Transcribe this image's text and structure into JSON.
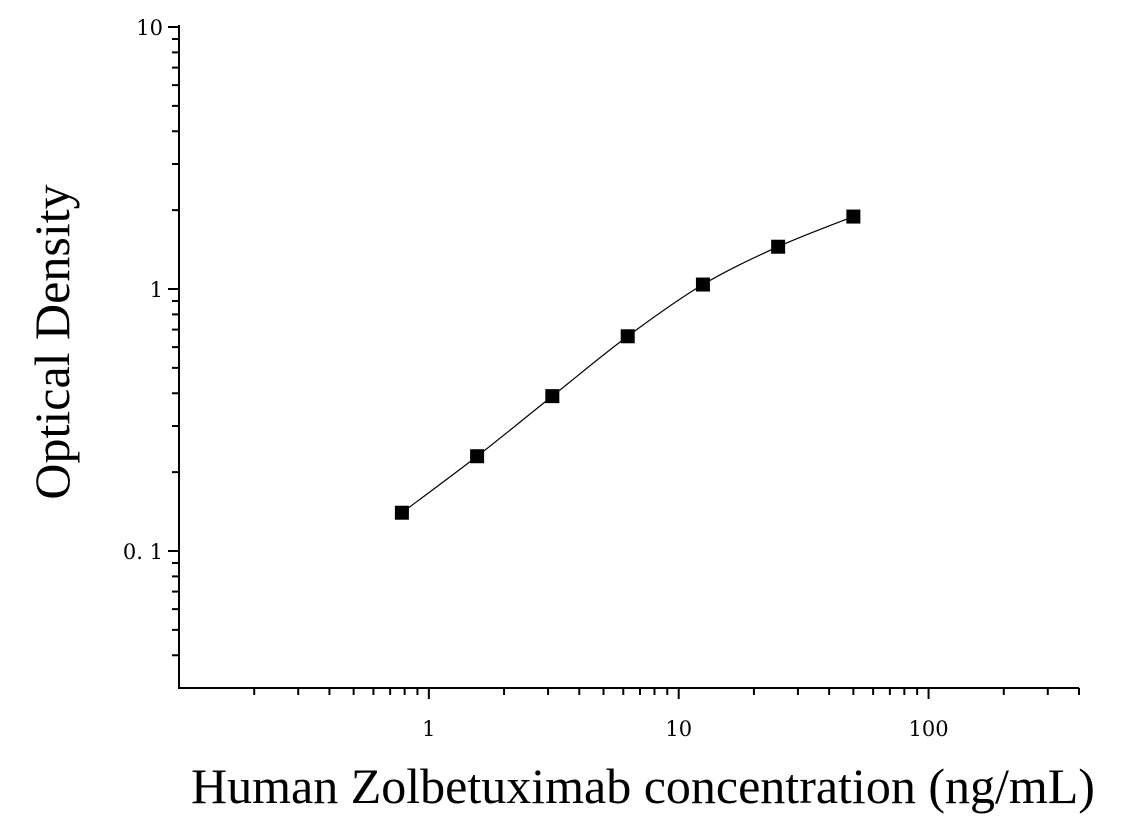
{
  "chart_data": {
    "type": "scatter",
    "title": "",
    "xlabel": "Human Zolbetuximab concentration (ng/mL)",
    "ylabel": "Optical Density",
    "x_scale": "log",
    "y_scale": "log",
    "xlim": [
      0.1,
      400
    ],
    "ylim": [
      0.03,
      10
    ],
    "x_tick_labels": [
      {
        "value": 1,
        "label": "1"
      },
      {
        "value": 10,
        "label": "10"
      },
      {
        "value": 100,
        "label": "100"
      }
    ],
    "y_tick_labels": [
      {
        "value": 10,
        "label": "10"
      },
      {
        "value": 1,
        "label": "1"
      },
      {
        "value": 0.1,
        "label": "0. 1"
      }
    ],
    "grid": false,
    "legend": "none",
    "series": [
      {
        "x": [
          0.78,
          1.56,
          3.12,
          6.25,
          12.5,
          25,
          50
        ],
        "y": [
          0.14,
          0.23,
          0.39,
          0.66,
          1.04,
          1.45,
          1.89
        ],
        "marker": "square",
        "fit_line": true,
        "color": "#000000"
      }
    ]
  }
}
